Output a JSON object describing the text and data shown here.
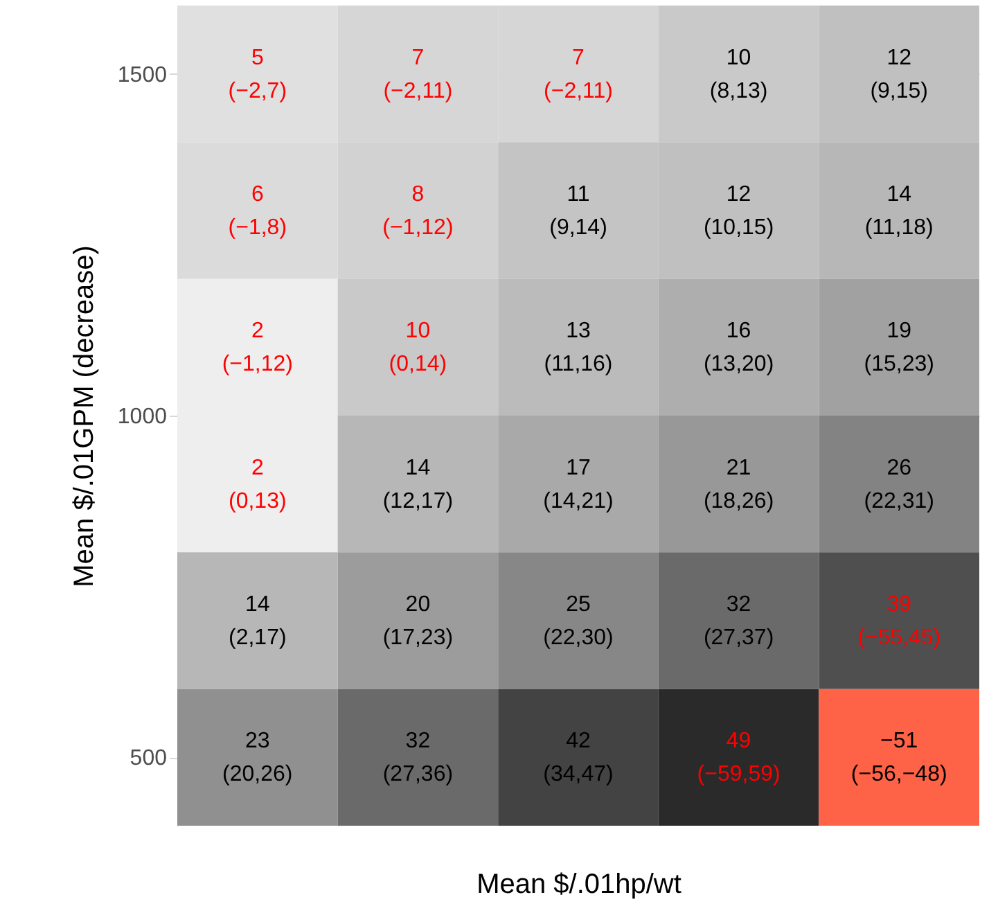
{
  "chart_data": {
    "type": "heatmap",
    "xlabel": "Mean $/.01hp/wt",
    "ylabel": "Mean $/.01GPM (decrease)",
    "categories": [
      null,
      null,
      null,
      null,
      null
    ],
    "ylim": [
      400,
      1600
    ],
    "yticks": [
      500,
      1000,
      1500
    ],
    "grid": "y",
    "data_labels": true,
    "cells": [
      [
        5,
        7,
        7,
        10,
        12
      ],
      [
        6,
        8,
        11,
        12,
        14
      ],
      [
        2,
        10,
        13,
        16,
        19
      ],
      [
        2,
        14,
        17,
        21,
        26
      ],
      [
        14,
        20,
        25,
        32,
        39
      ],
      [
        23,
        32,
        42,
        49,
        -51
      ]
    ],
    "annotations": [
      "(−2,7)",
      "(−2,11)",
      "(−2,11)",
      "(8,13)",
      "(9,15)",
      "(−1,8)",
      "(−1,12)",
      "(9,14)",
      "(10,15)",
      "(11,18)",
      "(−1,12)",
      "(0,14)",
      "(11,16)",
      "(13,20)",
      "(15,23)",
      "(0,13)",
      "(12,17)",
      "(14,21)",
      "(18,26)",
      "(22,31)",
      "(2,17)",
      "(17,23)",
      "(22,30)",
      "(27,37)",
      "(−55,45)",
      "(20,26)",
      "(27,36)",
      "(34,47)",
      "(−59,59)",
      "(−56,−48)"
    ]
  }
}
